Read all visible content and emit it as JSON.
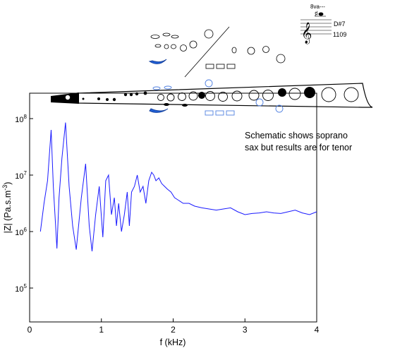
{
  "chart_data": {
    "type": "line",
    "xlabel": "f (kHz)",
    "ylabel": "|Z| (Pa.s.m",
    "ylabel_superscript": "-3",
    "ylabel_suffix": ")",
    "xlim": [
      0,
      4
    ],
    "ylim_log10": [
      4.4,
      8.45
    ],
    "yscale": "log",
    "x_ticks": [
      0,
      1,
      2,
      3,
      4
    ],
    "x_tick_labels": [
      "0",
      "1",
      "2",
      "3",
      "4"
    ],
    "y_ticks_log10": [
      5,
      6,
      7,
      8
    ],
    "y_tick_labels": [
      {
        "base": "10",
        "exp": "5"
      },
      {
        "base": "10",
        "exp": "6"
      },
      {
        "base": "10",
        "exp": "7"
      },
      {
        "base": "10",
        "exp": "8"
      }
    ],
    "grid": false,
    "series": [
      {
        "color": "#1a1aff",
        "x": [
          0.15,
          0.2,
          0.25,
          0.3,
          0.33,
          0.38,
          0.41,
          0.45,
          0.5,
          0.55,
          0.6,
          0.65,
          0.72,
          0.78,
          0.83,
          0.87,
          0.92,
          0.97,
          1.02,
          1.06,
          1.1,
          1.14,
          1.18,
          1.21,
          1.24,
          1.28,
          1.32,
          1.36,
          1.39,
          1.42,
          1.46,
          1.5,
          1.54,
          1.58,
          1.62,
          1.66,
          1.7,
          1.73,
          1.76,
          1.8,
          1.84,
          1.88,
          1.92,
          1.97,
          2.02,
          2.08,
          2.14,
          2.22,
          2.3,
          2.4,
          2.5,
          2.6,
          2.7,
          2.8,
          2.9,
          3.0,
          3.1,
          3.2,
          3.3,
          3.4,
          3.5,
          3.6,
          3.7,
          3.8,
          3.9,
          4.0
        ],
        "y_log10": [
          6.0,
          6.5,
          6.9,
          7.8,
          6.8,
          5.7,
          6.6,
          7.3,
          7.93,
          6.8,
          6.1,
          5.68,
          6.6,
          7.2,
          6.1,
          5.65,
          6.3,
          6.8,
          5.9,
          6.9,
          7.0,
          6.3,
          6.6,
          6.1,
          6.5,
          6.0,
          6.3,
          6.7,
          6.1,
          6.7,
          6.8,
          7.0,
          6.7,
          6.8,
          6.5,
          6.9,
          7.05,
          7.0,
          6.9,
          6.95,
          6.85,
          6.8,
          6.75,
          6.7,
          6.6,
          6.55,
          6.5,
          6.5,
          6.45,
          6.42,
          6.4,
          6.38,
          6.4,
          6.42,
          6.35,
          6.3,
          6.32,
          6.33,
          6.35,
          6.33,
          6.32,
          6.35,
          6.38,
          6.33,
          6.3,
          6.35
        ]
      }
    ]
  },
  "annotation": {
    "line1": "Schematic shows soprano",
    "line2": "sax but results are for tenor"
  },
  "note_panel": {
    "ottava": "8va---",
    "note_name": "D#7",
    "frequency": "1109"
  }
}
